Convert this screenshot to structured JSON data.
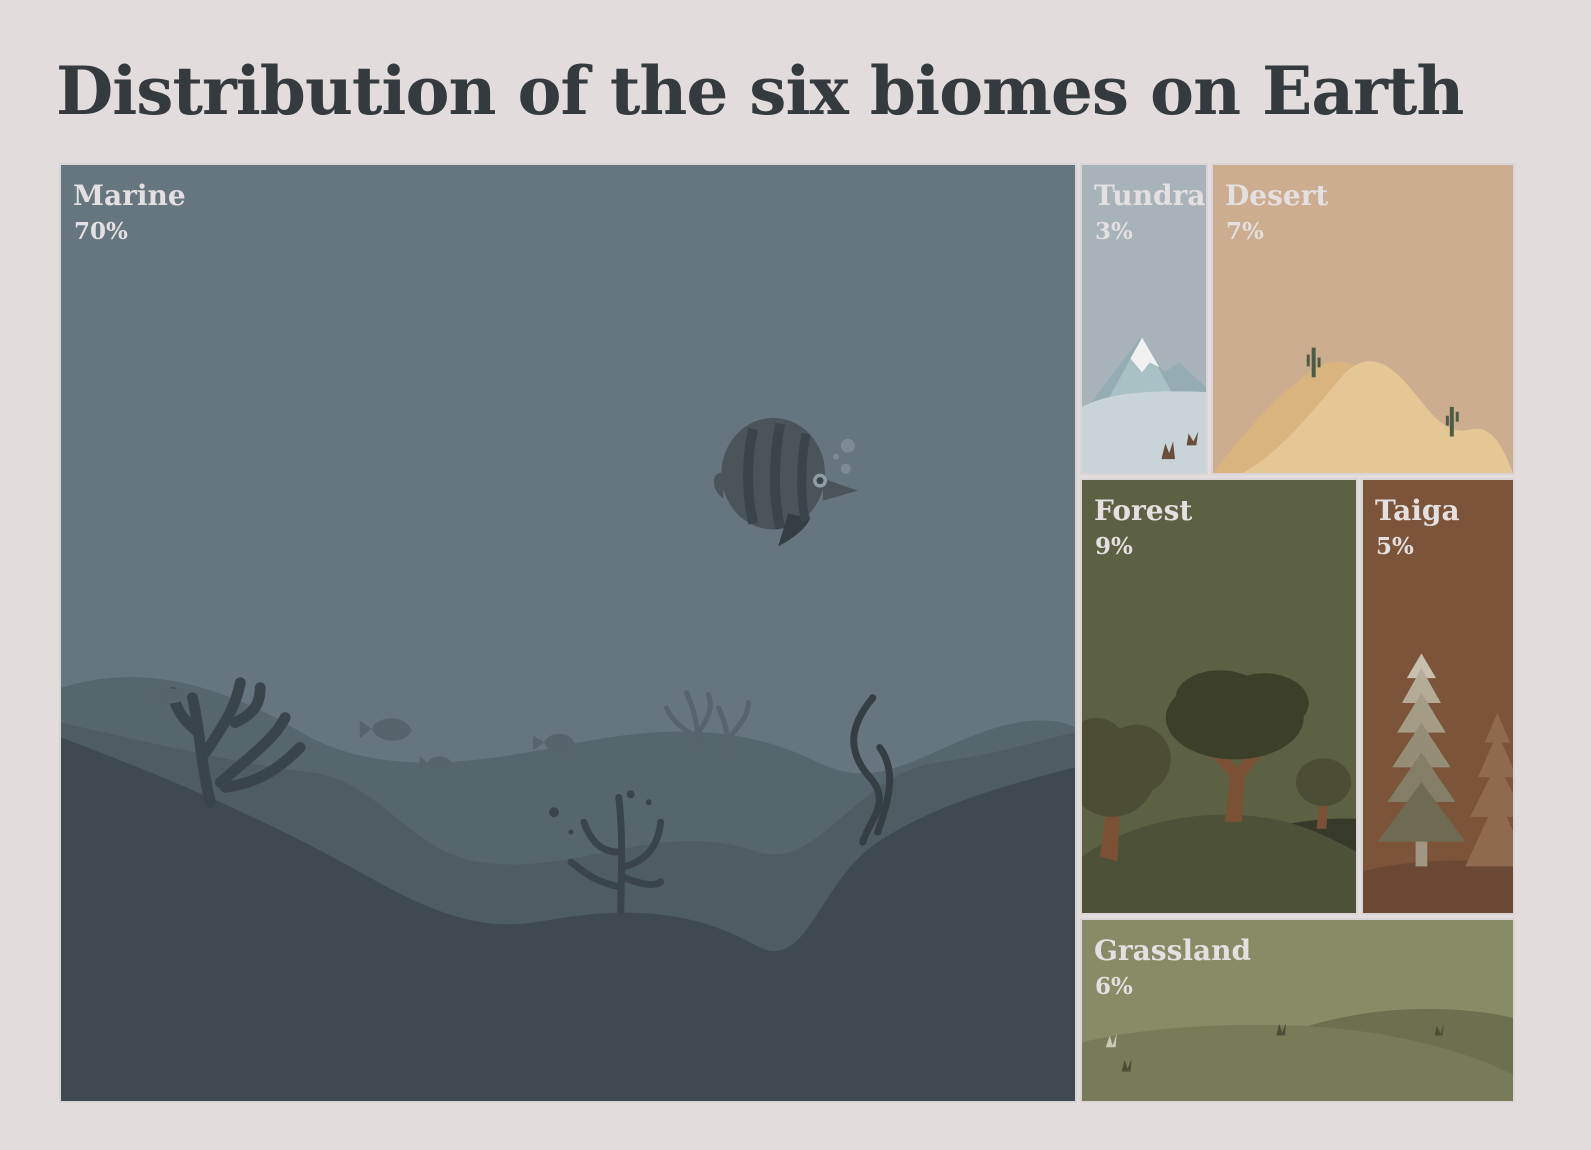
{
  "chart_data": {
    "type": "treemap",
    "title": "Distribution of the six biomes on Earth",
    "unit": "%",
    "categories": [
      "Marine",
      "Tundra",
      "Desert",
      "Forest",
      "Taiga",
      "Grassland"
    ],
    "values": [
      70,
      3,
      7,
      9,
      5,
      6
    ],
    "value_labels": [
      "70%",
      "3%",
      "7%",
      "9%",
      "5%",
      "6%"
    ],
    "colors": {
      "Marine": "#66767e",
      "Tundra": "#a7b3b8",
      "Desert": "#ccad8f",
      "Forest": "#5c6143",
      "Taiga": "#7b5439",
      "Grassland": "#878b66"
    },
    "illustrations": {
      "Marine": "underwater-scene-fish-coral",
      "Tundra": "snowy-mountain",
      "Desert": "sand-dunes-cactus",
      "Forest": "deciduous-trees-hills",
      "Taiga": "conifer-trees",
      "Grassland": "rolling-grass-hills"
    }
  }
}
